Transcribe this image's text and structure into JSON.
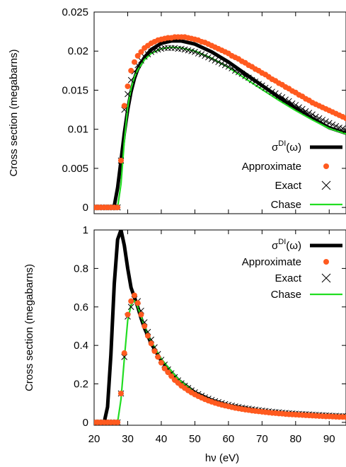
{
  "figure": {
    "xlabel": "hν (eV)"
  },
  "colors": {
    "di": "#000000",
    "approx": "#ff5a1f",
    "exact": "#000000",
    "chase": "#22dd22"
  },
  "chart_data": [
    {
      "type": "line",
      "ylabel": "Cross section (megabarns)",
      "xlim": [
        20,
        95
      ],
      "ylim": [
        -0.0008,
        0.025
      ],
      "yticks": [
        0,
        0.005,
        0.01,
        0.015,
        0.02,
        0.025
      ],
      "ytick_labels": [
        "0",
        "0.005",
        "0.01",
        "0.015",
        "0.02",
        "0.025"
      ],
      "xticks": [
        20,
        30,
        40,
        50,
        60,
        70,
        80,
        90
      ],
      "legend": [
        {
          "label_main": "σ",
          "label_sup": "DI",
          "label_tail": "(ω)",
          "series": 0
        },
        {
          "label_main": "Approximate",
          "series": 1
        },
        {
          "label_main": "Exact",
          "series": 2
        },
        {
          "label_main": "Chase",
          "series": 3
        }
      ],
      "series": [
        {
          "style": "line-thick",
          "x": [
            20,
            25,
            26,
            27,
            28,
            29,
            30,
            31,
            32,
            33,
            35,
            37,
            40,
            43,
            46,
            50,
            55,
            60,
            65,
            70,
            75,
            80,
            85,
            90,
            95
          ],
          "values": [
            0,
            0,
            0.0002,
            0.0025,
            0.006,
            0.0095,
            0.0125,
            0.0148,
            0.0165,
            0.0177,
            0.0192,
            0.0202,
            0.021,
            0.0213,
            0.0213,
            0.0209,
            0.0199,
            0.0186,
            0.0171,
            0.0156,
            0.0141,
            0.0127,
            0.0114,
            0.0102,
            0.0095
          ]
        },
        {
          "style": "dots",
          "x": [
            20,
            21,
            22,
            23,
            24,
            25,
            26,
            27,
            28,
            29,
            30,
            31,
            32,
            33,
            34,
            35,
            36,
            37,
            38,
            39,
            40,
            41,
            42,
            43,
            44,
            45,
            46,
            47,
            48,
            49,
            50,
            51,
            52,
            53,
            54,
            55,
            56,
            57,
            58,
            59,
            60,
            61,
            62,
            63,
            64,
            65,
            66,
            67,
            68,
            69,
            70,
            71,
            72,
            73,
            74,
            75,
            76,
            77,
            78,
            79,
            80,
            81,
            82,
            83,
            84,
            85,
            86,
            87,
            88,
            89,
            90,
            91,
            92,
            93,
            94,
            95
          ],
          "values": [
            0,
            0,
            0,
            0,
            0,
            0,
            0,
            0,
            0.006,
            0.013,
            0.0155,
            0.0175,
            0.0186,
            0.0194,
            0.0199,
            0.0204,
            0.0207,
            0.021,
            0.0212,
            0.0214,
            0.0215,
            0.0216,
            0.0217,
            0.0217,
            0.0218,
            0.0218,
            0.0218,
            0.0218,
            0.0217,
            0.0216,
            0.0215,
            0.0214,
            0.0212,
            0.0211,
            0.0209,
            0.0207,
            0.0205,
            0.0203,
            0.0201,
            0.0199,
            0.0197,
            0.0194,
            0.0192,
            0.019,
            0.0187,
            0.0185,
            0.0182,
            0.018,
            0.0177,
            0.0175,
            0.0172,
            0.017,
            0.0167,
            0.0164,
            0.0162,
            0.0159,
            0.0157,
            0.0154,
            0.0152,
            0.0149,
            0.0147,
            0.0144,
            0.0142,
            0.0139,
            0.0137,
            0.0134,
            0.0132,
            0.013,
            0.0128,
            0.0126,
            0.0124,
            0.0122,
            0.012,
            0.0118,
            0.0116,
            0.0114
          ]
        },
        {
          "style": "crosses",
          "x": [
            20,
            21,
            22,
            23,
            24,
            25,
            26,
            27,
            28,
            29,
            30,
            31,
            32,
            33,
            34,
            35,
            36,
            37,
            38,
            39,
            40,
            41,
            42,
            43,
            44,
            45,
            46,
            47,
            48,
            49,
            50,
            51,
            52,
            53,
            54,
            55,
            56,
            57,
            58,
            59,
            60,
            61,
            62,
            63,
            64,
            65,
            66,
            67,
            68,
            69,
            70,
            71,
            72,
            73,
            74,
            75,
            76,
            77,
            78,
            79,
            80,
            81,
            82,
            83,
            84,
            85,
            86,
            87,
            88,
            89,
            90,
            91,
            92,
            93,
            94,
            95
          ],
          "values": [
            0,
            0,
            0,
            0,
            0,
            0,
            0,
            0,
            0.006,
            0.0125,
            0.0145,
            0.0163,
            0.0174,
            0.0182,
            0.0188,
            0.0193,
            0.0196,
            0.0199,
            0.0201,
            0.0202,
            0.0203,
            0.0204,
            0.0204,
            0.0204,
            0.0204,
            0.0203,
            0.0203,
            0.0202,
            0.0201,
            0.02,
            0.0199,
            0.0197,
            0.0196,
            0.0194,
            0.0192,
            0.019,
            0.0188,
            0.0186,
            0.0184,
            0.0182,
            0.018,
            0.0178,
            0.0175,
            0.0173,
            0.0171,
            0.0168,
            0.0166,
            0.0163,
            0.0161,
            0.0158,
            0.0156,
            0.0153,
            0.0151,
            0.0148,
            0.0146,
            0.0143,
            0.0141,
            0.0138,
            0.0136,
            0.0133,
            0.0131,
            0.0128,
            0.0126,
            0.0123,
            0.0121,
            0.0119,
            0.0116,
            0.0114,
            0.0112,
            0.011,
            0.0108,
            0.0106,
            0.0104,
            0.0102,
            0.0101,
            0.0099
          ]
        },
        {
          "style": "line-thin",
          "x": [
            20,
            27,
            28,
            29,
            30,
            31,
            32,
            33,
            35,
            37,
            40,
            43,
            46,
            50,
            55,
            60,
            65,
            70,
            75,
            80,
            85,
            90,
            95
          ],
          "values": [
            0,
            0,
            0.003,
            0.0085,
            0.0128,
            0.0152,
            0.0167,
            0.0176,
            0.0189,
            0.0197,
            0.0203,
            0.0205,
            0.0204,
            0.02,
            0.0191,
            0.0179,
            0.0165,
            0.0151,
            0.0137,
            0.0124,
            0.0112,
            0.0101,
            0.0094
          ]
        }
      ]
    },
    {
      "type": "line",
      "ylabel": "Cross section (megabarns)",
      "xlabel": "hν (eV)",
      "xlim": [
        20,
        95
      ],
      "ylim": [
        -0.015,
        1.0
      ],
      "yticks": [
        0,
        0.2,
        0.4,
        0.6,
        0.8,
        1.0
      ],
      "ytick_labels": [
        "0",
        "0.2",
        "0.4",
        "0.6",
        "0.8",
        "1"
      ],
      "xticks": [
        20,
        30,
        40,
        50,
        60,
        70,
        80,
        90
      ],
      "xtick_labels": [
        "20",
        "30",
        "40",
        "50",
        "60",
        "70",
        "80",
        "90"
      ],
      "legend": [
        {
          "label_main": "σ",
          "label_sup": "DI",
          "label_tail": "(ω)",
          "series": 0
        },
        {
          "label_main": "Approximate",
          "series": 1
        },
        {
          "label_main": "Exact",
          "series": 2
        },
        {
          "label_main": "Chase",
          "series": 3
        }
      ],
      "series": [
        {
          "style": "line-thick",
          "x": [
            20,
            22,
            23,
            24,
            25,
            26,
            27,
            28,
            29,
            30,
            31,
            32,
            33,
            34,
            35,
            37,
            40,
            45,
            50,
            55,
            60,
            70,
            80,
            90,
            95
          ],
          "values": [
            0,
            0,
            0,
            0.08,
            0.35,
            0.72,
            0.95,
            1.0,
            0.92,
            0.8,
            0.7,
            0.65,
            0.6,
            0.54,
            0.49,
            0.41,
            0.32,
            0.22,
            0.155,
            0.115,
            0.088,
            0.058,
            0.04,
            0.03,
            0.026
          ]
        },
        {
          "style": "dots",
          "x": [
            20,
            21,
            22,
            23,
            24,
            25,
            26,
            27,
            28,
            29,
            30,
            31,
            32,
            33,
            34,
            35,
            36,
            37,
            38,
            39,
            40,
            41,
            42,
            43,
            44,
            45,
            46,
            47,
            48,
            49,
            50,
            51,
            52,
            53,
            54,
            55,
            56,
            57,
            58,
            59,
            60,
            61,
            62,
            63,
            64,
            65,
            66,
            67,
            68,
            69,
            70,
            71,
            72,
            73,
            74,
            75,
            76,
            77,
            78,
            79,
            80,
            81,
            82,
            83,
            84,
            85,
            86,
            87,
            88,
            89,
            90,
            91,
            92,
            93,
            94,
            95
          ],
          "values": [
            0,
            0,
            0,
            0,
            0,
            0,
            0,
            0,
            0.15,
            0.36,
            0.56,
            0.63,
            0.66,
            0.62,
            0.56,
            0.5,
            0.45,
            0.41,
            0.37,
            0.34,
            0.31,
            0.28,
            0.26,
            0.24,
            0.22,
            0.205,
            0.19,
            0.178,
            0.166,
            0.155,
            0.145,
            0.136,
            0.128,
            0.12,
            0.113,
            0.107,
            0.101,
            0.096,
            0.091,
            0.087,
            0.083,
            0.079,
            0.075,
            0.072,
            0.069,
            0.066,
            0.064,
            0.061,
            0.059,
            0.057,
            0.055,
            0.053,
            0.051,
            0.049,
            0.048,
            0.046,
            0.045,
            0.043,
            0.042,
            0.041,
            0.04,
            0.039,
            0.038,
            0.037,
            0.036,
            0.035,
            0.034,
            0.033,
            0.032,
            0.031,
            0.031,
            0.03,
            0.029,
            0.028,
            0.028,
            0.027
          ]
        },
        {
          "style": "crosses",
          "x": [
            20,
            21,
            22,
            23,
            24,
            25,
            26,
            27,
            28,
            29,
            30,
            31,
            32,
            33,
            34,
            35,
            36,
            37,
            38,
            39,
            40,
            41,
            42,
            43,
            44,
            45,
            46,
            47,
            48,
            49,
            50,
            51,
            52,
            53,
            54,
            55,
            56,
            57,
            58,
            59,
            60,
            61,
            62,
            63,
            64,
            65,
            66,
            67,
            68,
            69,
            70,
            71,
            72,
            73,
            74,
            75,
            76,
            77,
            78,
            79,
            80,
            81,
            82,
            83,
            84,
            85,
            86,
            87,
            88,
            89,
            90,
            91,
            92,
            93,
            94,
            95
          ],
          "values": [
            0,
            0,
            0,
            0,
            0,
            0,
            0,
            0,
            0.15,
            0.34,
            0.55,
            0.6,
            0.64,
            0.63,
            0.58,
            0.52,
            0.47,
            0.43,
            0.39,
            0.355,
            0.325,
            0.3,
            0.275,
            0.255,
            0.235,
            0.218,
            0.203,
            0.19,
            0.178,
            0.166,
            0.156,
            0.147,
            0.138,
            0.13,
            0.123,
            0.116,
            0.11,
            0.105,
            0.1,
            0.095,
            0.091,
            0.087,
            0.083,
            0.08,
            0.076,
            0.073,
            0.071,
            0.068,
            0.066,
            0.063,
            0.061,
            0.059,
            0.057,
            0.055,
            0.053,
            0.052,
            0.05,
            0.049,
            0.047,
            0.046,
            0.045,
            0.044,
            0.043,
            0.042,
            0.041,
            0.04,
            0.039,
            0.038,
            0.037,
            0.036,
            0.035,
            0.034,
            0.034,
            0.033,
            0.032,
            0.032
          ]
        },
        {
          "style": "line-thin",
          "x": [
            20,
            27,
            28,
            29,
            30,
            31,
            32,
            33,
            34,
            35,
            37,
            40,
            45,
            50,
            55,
            60,
            70,
            80,
            90,
            95
          ],
          "values": [
            0,
            0,
            0.12,
            0.33,
            0.53,
            0.61,
            0.635,
            0.6,
            0.55,
            0.5,
            0.42,
            0.33,
            0.225,
            0.155,
            0.113,
            0.086,
            0.056,
            0.038,
            0.029,
            0.025
          ]
        }
      ]
    }
  ]
}
